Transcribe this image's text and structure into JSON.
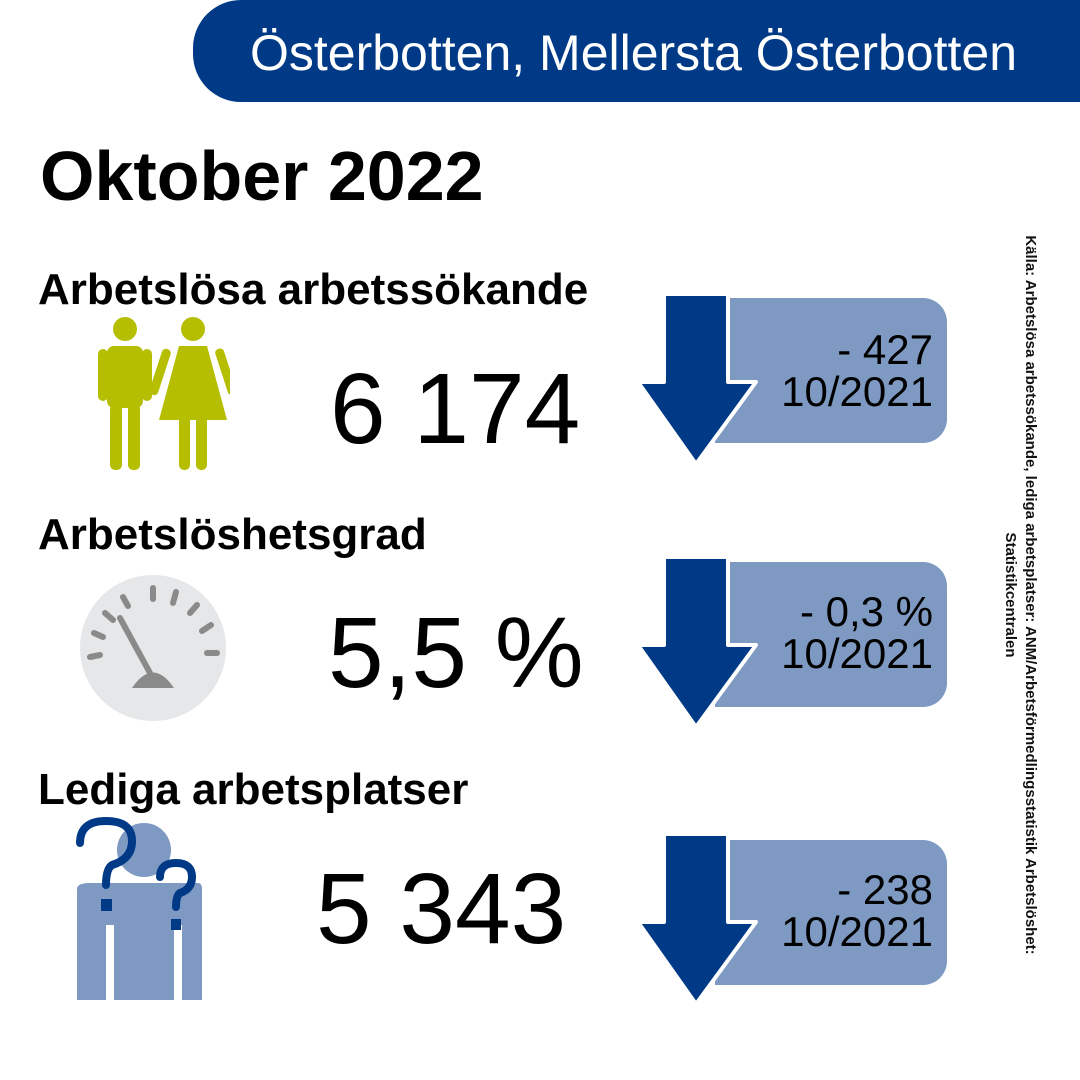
{
  "header": {
    "region": "Österbotten, Mellersta Österbotten"
  },
  "period": "Oktober 2022",
  "sections": [
    {
      "title": "Arbetslösa arbetssökande",
      "value": "6 174",
      "change": "- 427",
      "compare": "10/2021",
      "trend": "down",
      "icon": "people-icon"
    },
    {
      "title": "Arbetslöshetsgrad",
      "value": "5,5 %",
      "change": "- 0,3 %",
      "compare": "10/2021",
      "trend": "down",
      "icon": "gauge-icon"
    },
    {
      "title": "Lediga arbetsplatser",
      "value": "5 343",
      "change": "- 238",
      "compare": "10/2021",
      "trend": "down",
      "icon": "question-person-icon"
    }
  ],
  "source": "Källa: Arbetslösa arbetssökande, lediga arbetsplatser: ANM/Arbetsförmedlingsstatistik Arbetslöshet: Statistikcentralen",
  "colors": {
    "banner": "#003a87",
    "arrow": "#003a87",
    "change_box": "#7f9ac2",
    "people_icon": "#b5be00",
    "gauge_face": "#e6e7e8",
    "gauge_marks": "#8a8a8a",
    "question_person": "#7f9ac2"
  }
}
